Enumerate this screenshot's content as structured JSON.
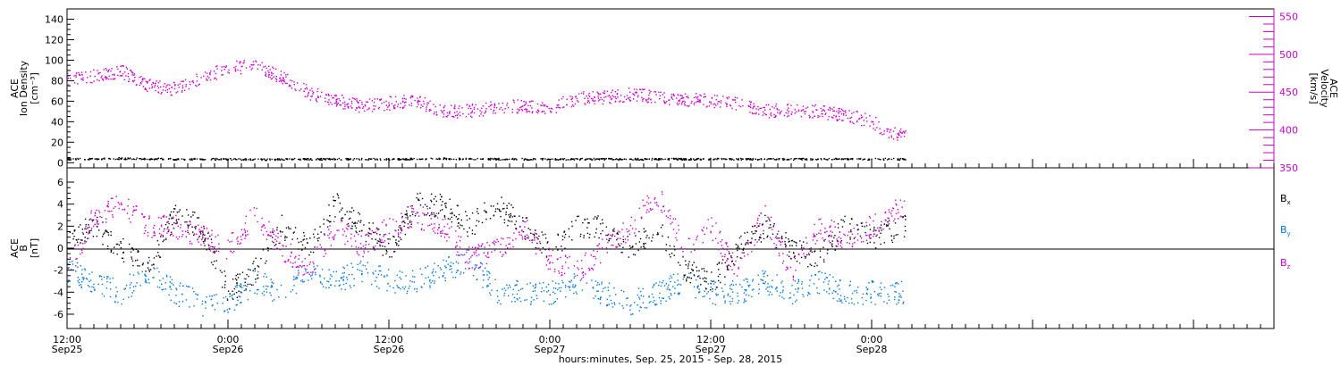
{
  "chart_data": [
    {
      "type": "scatter",
      "panel": "top",
      "xlabel": "hours:minutes, Sep. 25, 2015 - Sep. 28, 2015",
      "x_range_hours": [
        0,
        90
      ],
      "x_ticks": [
        {
          "hour": 0,
          "time": "12:00",
          "date": "Sep25"
        },
        {
          "hour": 12,
          "time": "0:00",
          "date": "Sep26"
        },
        {
          "hour": 24,
          "time": "12:00",
          "date": "Sep26"
        },
        {
          "hour": 36,
          "time": "0:00",
          "date": "Sep27"
        },
        {
          "hour": 48,
          "time": "12:00",
          "date": "Sep27"
        },
        {
          "hour": 60,
          "time": "0:00",
          "date": "Sep28"
        }
      ],
      "ylabel_left": [
        "ACE",
        "Ion Density",
        "[cm⁻³]"
      ],
      "ylim_left": [
        -5,
        150
      ],
      "yticks_left": [
        "0",
        "20",
        "40",
        "60",
        "80",
        "100",
        "120",
        "140"
      ],
      "ylabel_right": [
        "ACE",
        "Velocity",
        "[km/s]"
      ],
      "ylim_right": [
        350,
        560
      ],
      "yticks_right": [
        "350",
        "400",
        "450",
        "500",
        "550"
      ],
      "series": [
        {
          "axis": "left",
          "color": "#000000",
          "x": [
            0,
            4,
            8,
            12,
            14,
            18,
            24,
            28,
            32,
            36,
            40,
            44,
            48,
            52,
            56,
            60,
            62.5
          ],
          "y": [
            4,
            4.5,
            4,
            4,
            3.5,
            4,
            4,
            4.5,
            4,
            4,
            4,
            4,
            4,
            4,
            4,
            4,
            4
          ]
        },
        {
          "axis": "right",
          "color": "#cc00cc",
          "x": [
            0,
            2,
            4,
            6,
            8,
            10,
            12,
            14,
            16,
            18,
            20,
            22,
            24,
            26,
            28,
            30,
            32,
            34,
            36,
            38,
            40,
            42,
            44,
            46,
            48,
            50,
            52,
            54,
            56,
            58,
            60,
            61,
            62.5
          ],
          "y": [
            468,
            472,
            478,
            460,
            455,
            470,
            482,
            485,
            470,
            450,
            440,
            432,
            436,
            440,
            425,
            426,
            430,
            432,
            430,
            442,
            444,
            448,
            445,
            440,
            440,
            435,
            425,
            428,
            425,
            420,
            412,
            400,
            392
          ]
        }
      ]
    },
    {
      "type": "scatter",
      "panel": "bottom",
      "xlabel": "hours:minutes, Sep. 25, 2015 - Sep. 28, 2015",
      "x_range_hours": [
        0,
        90
      ],
      "ylabel_left": [
        "ACE",
        "B",
        "[nT]"
      ],
      "ylim_left": [
        -7.3,
        7.3
      ],
      "yticks_left": [
        "-6",
        "-4",
        "-2",
        "0",
        "2",
        "4",
        "6"
      ],
      "legend_placement": "right",
      "legend": [
        {
          "label": "B",
          "sub": "x",
          "color": "#000000"
        },
        {
          "label": "B",
          "sub": "y",
          "color": "#0077dd"
        },
        {
          "label": "B",
          "sub": "z",
          "color": "#cc00cc"
        }
      ],
      "series": [
        {
          "name": "Bx",
          "color": "#000000",
          "x": [
            0,
            2,
            4,
            6,
            8,
            10,
            12,
            14,
            16,
            18,
            20,
            22,
            24,
            26,
            28,
            30,
            32,
            34,
            36,
            38,
            40,
            42,
            44,
            46,
            48,
            50,
            52,
            54,
            56,
            58,
            60,
            62.5
          ],
          "y": [
            1,
            2,
            0,
            -2,
            3,
            2,
            -4,
            -2,
            2,
            0,
            4,
            2,
            0,
            4,
            4,
            2,
            4,
            2,
            0,
            2,
            2,
            0,
            2,
            -2,
            -3,
            0,
            2,
            0,
            -1,
            2,
            1,
            2
          ]
        },
        {
          "name": "By",
          "color": "#0077dd",
          "x": [
            0,
            2,
            4,
            6,
            8,
            10,
            12,
            14,
            16,
            18,
            20,
            22,
            24,
            26,
            28,
            30,
            32,
            34,
            36,
            38,
            40,
            42,
            44,
            46,
            48,
            50,
            52,
            54,
            56,
            58,
            60,
            62.5
          ],
          "y": [
            -2,
            -3,
            -4,
            -2,
            -4,
            -5,
            -5,
            -3,
            -4,
            -2,
            -3,
            -2,
            -3,
            -3,
            -2,
            -1,
            -4,
            -4,
            -4,
            -3,
            -4,
            -5,
            -4,
            -3,
            -4,
            -4,
            -3,
            -4,
            -3,
            -4,
            -4,
            -4
          ]
        },
        {
          "name": "Bz",
          "color": "#cc00cc",
          "x": [
            0,
            2,
            4,
            6,
            8,
            10,
            12,
            14,
            16,
            18,
            20,
            22,
            24,
            26,
            28,
            30,
            32,
            34,
            36,
            38,
            40,
            42,
            44,
            46,
            48,
            50,
            52,
            54,
            56,
            58,
            60,
            62.5
          ],
          "y": [
            -2,
            3,
            4,
            2,
            2,
            1,
            0,
            3,
            0,
            -2,
            2,
            0,
            2,
            3,
            2,
            -1,
            0,
            2,
            -1,
            -2,
            0,
            2,
            5,
            0,
            2,
            -2,
            3,
            -2,
            2,
            1,
            2,
            4
          ]
        }
      ]
    }
  ]
}
